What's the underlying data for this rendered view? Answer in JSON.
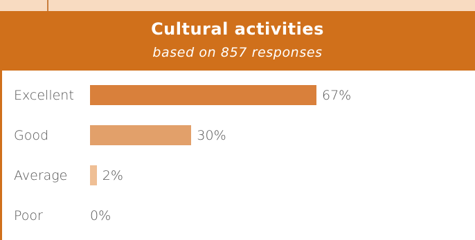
{
  "header": {
    "title": "Cultural activities",
    "subtitle": "based on 857 responses"
  },
  "colors": {
    "header_bg": "#d0701b",
    "bars": [
      "#d9803b",
      "#e2a06a",
      "#efbf95",
      "#f4d2b4"
    ]
  },
  "chart_data": {
    "type": "bar",
    "orientation": "horizontal",
    "title": "Cultural activities",
    "subtitle": "based on 857 responses",
    "categories": [
      "Excellent",
      "Good",
      "Average",
      "Poor"
    ],
    "values": [
      67,
      30,
      2,
      0
    ],
    "value_labels": [
      "67%",
      "30%",
      "2%",
      "0%"
    ],
    "unit": "%",
    "xlim": [
      0,
      100
    ],
    "grid": false,
    "legend": "none"
  }
}
